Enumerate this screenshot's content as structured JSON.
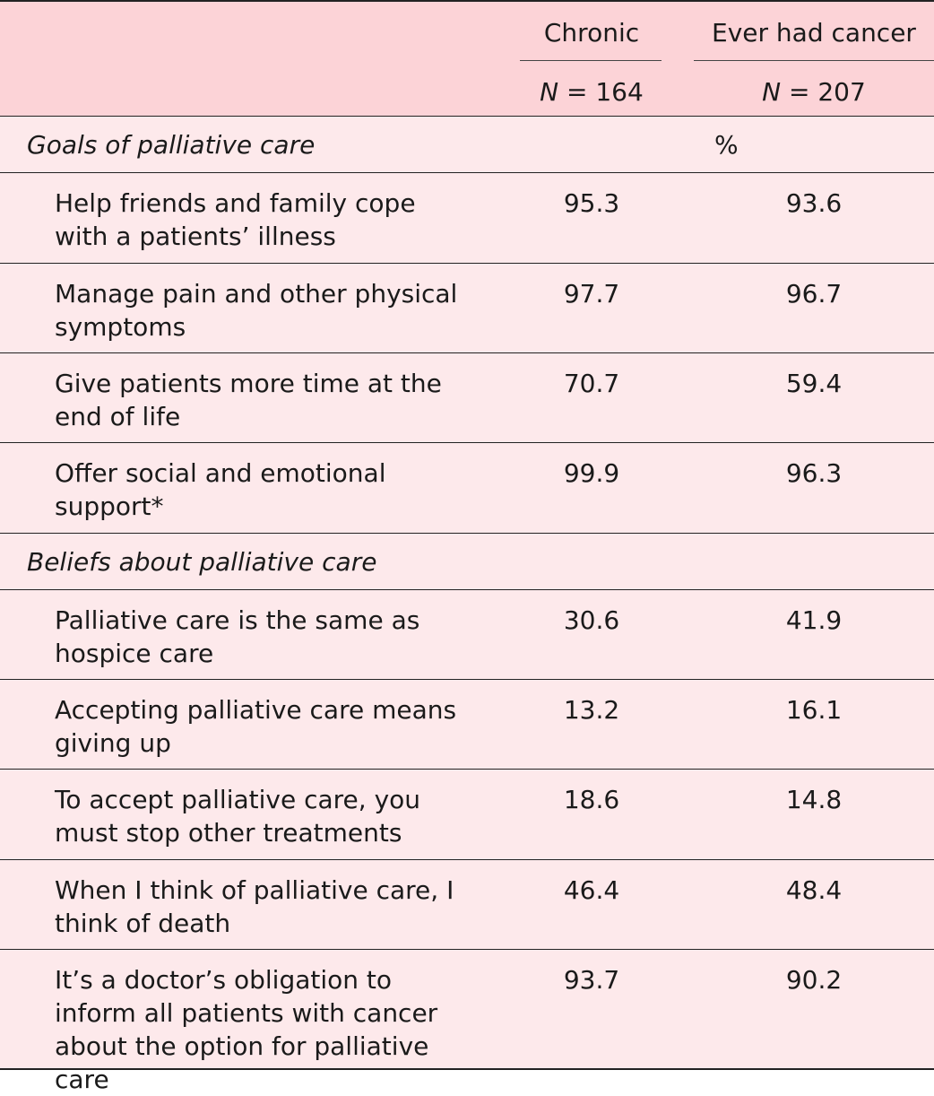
{
  "header": {
    "col1_title": "Chronic",
    "col2_title": "Ever had cancer",
    "col1_n_label": "N",
    "col1_n_value": " = 164",
    "col2_n_label": "N",
    "col2_n_value": " = 207"
  },
  "sections": [
    {
      "label": "Goals of palliative care",
      "unit": "%",
      "rows": [
        {
          "item": "Help friends and family cope with a patients’ illness",
          "chronic": "95.3",
          "cancer": "93.6"
        },
        {
          "item": "Manage pain and other physical symptoms",
          "chronic": "97.7",
          "cancer": "96.7"
        },
        {
          "item": "Give patients more time at the end of life",
          "chronic": "70.7",
          "cancer": "59.4"
        },
        {
          "item": "Offer social and emotional support*",
          "chronic": "99.9",
          "cancer": "96.3"
        }
      ]
    },
    {
      "label": "Beliefs about palliative care",
      "unit": "",
      "rows": [
        {
          "item": "Palliative care is the same as hospice care",
          "chronic": "30.6",
          "cancer": "41.9"
        },
        {
          "item": "Accepting palliative care means giving up",
          "chronic": "13.2",
          "cancer": "16.1"
        },
        {
          "item": "To accept palliative care, you must stop other treatments",
          "chronic": "18.6",
          "cancer": "14.8"
        },
        {
          "item": "When I think of palliative care, I think of death",
          "chronic": "46.4",
          "cancer": "48.4"
        },
        {
          "item": "It’s a doctor’s obligation to inform all patients with cancer about the option for palliative care",
          "chronic": "93.7",
          "cancer": "90.2"
        }
      ]
    }
  ]
}
